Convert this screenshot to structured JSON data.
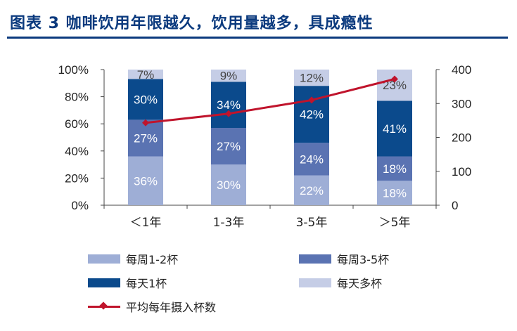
{
  "header": {
    "title": "图表 3 咖啡饮用年限越久，饮用量越多，具成瘾性"
  },
  "chart_data": {
    "type": "bar",
    "stacked": true,
    "categories": [
      "＜1年",
      "1-3年",
      "3-5年",
      "＞5年"
    ],
    "series": [
      {
        "name": "每周1-2杯",
        "values": [
          36,
          30,
          22,
          18
        ],
        "labels": [
          "36%",
          "30%",
          "22%",
          "18%"
        ],
        "color": "#9eaed6",
        "label_color": "#ffffff"
      },
      {
        "name": "每周3-5杯",
        "values": [
          27,
          27,
          24,
          18
        ],
        "labels": [
          "27%",
          "27%",
          "24%",
          "18%"
        ],
        "color": "#5a73b2",
        "label_color": "#ffffff"
      },
      {
        "name": "每天1杯",
        "values": [
          30,
          34,
          42,
          41
        ],
        "labels": [
          "30%",
          "34%",
          "42%",
          "41%"
        ],
        "color": "#0b4a8c",
        "label_color": "#ffffff"
      },
      {
        "name": "每天多杯",
        "values": [
          7,
          9,
          12,
          23
        ],
        "labels": [
          "7%",
          "9%",
          "12%",
          "23%"
        ],
        "color": "#c5cde6",
        "label_color": "#444444"
      }
    ],
    "line_series": {
      "name": "平均每年摄入杯数",
      "values": [
        243,
        270,
        310,
        372
      ],
      "color": "#c0142c",
      "axis": "right"
    },
    "y_left": {
      "min": 0,
      "max": 100,
      "ticks": [
        0,
        20,
        40,
        60,
        80,
        100
      ],
      "tick_labels": [
        "0%",
        "20%",
        "40%",
        "60%",
        "80%",
        "100%"
      ]
    },
    "y_right": {
      "min": 0,
      "max": 400,
      "ticks": [
        0,
        100,
        200,
        300,
        400
      ],
      "tick_labels": [
        "0",
        "100",
        "200",
        "300",
        "400"
      ]
    },
    "grid": false,
    "legend_position": "bottom"
  }
}
